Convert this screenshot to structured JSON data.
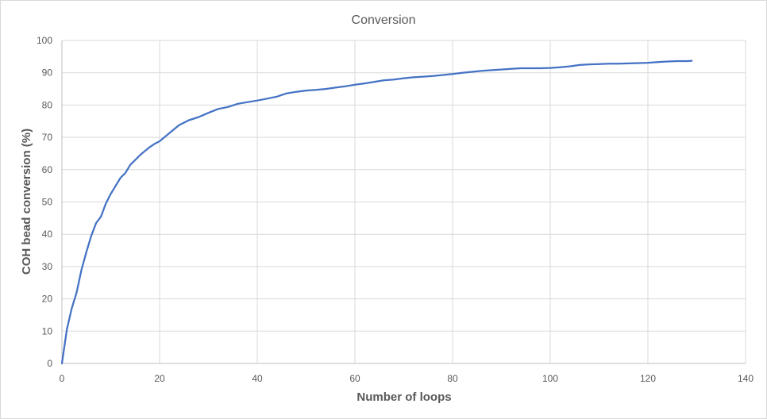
{
  "chart_data": {
    "type": "line",
    "title": "Conversion",
    "xlabel": "Number of loops",
    "ylabel": "COH bead conversion (%)",
    "xlim": [
      0,
      140
    ],
    "ylim": [
      0,
      100
    ],
    "xticks": [
      0,
      20,
      40,
      60,
      80,
      100,
      120,
      140
    ],
    "yticks": [
      0,
      10,
      20,
      30,
      40,
      50,
      60,
      70,
      80,
      90,
      100
    ],
    "grid": true,
    "legend": "none",
    "series": [
      {
        "color": "#4472c4",
        "x": [
          0,
          1,
          2,
          3,
          4,
          5,
          6,
          7,
          8,
          9,
          10,
          11,
          12,
          13,
          14,
          15,
          16,
          17,
          18,
          19,
          20,
          22,
          24,
          26,
          28,
          30,
          32,
          34,
          36,
          38,
          40,
          42,
          44,
          46,
          48,
          50,
          52,
          54,
          56,
          58,
          60,
          62,
          64,
          66,
          68,
          70,
          72,
          74,
          76,
          78,
          80,
          82,
          84,
          86,
          88,
          90,
          92,
          94,
          96,
          98,
          100,
          102,
          104,
          106,
          108,
          110,
          112,
          114,
          116,
          118,
          120,
          122,
          124,
          126,
          128,
          129
        ],
        "values": [
          0,
          10.5,
          17.0,
          22.0,
          29.0,
          34.5,
          39.5,
          43.5,
          45.5,
          49.5,
          52.5,
          55.0,
          57.5,
          59.0,
          61.5,
          63.0,
          64.5,
          65.8,
          67.0,
          68.0,
          68.8,
          71.3,
          73.8,
          75.3,
          76.3,
          77.6,
          78.8,
          79.4,
          80.4,
          80.9,
          81.4,
          82.0,
          82.6,
          83.6,
          84.1,
          84.5,
          84.7,
          85.0,
          85.4,
          85.8,
          86.3,
          86.7,
          87.2,
          87.7,
          87.9,
          88.3,
          88.6,
          88.8,
          89.0,
          89.3,
          89.6,
          90.0,
          90.3,
          90.6,
          90.8,
          91.0,
          91.2,
          91.4,
          91.4,
          91.4,
          91.5,
          91.7,
          92.0,
          92.4,
          92.6,
          92.7,
          92.8,
          92.8,
          92.9,
          93.0,
          93.1,
          93.3,
          93.5,
          93.6,
          93.6,
          93.7
        ]
      }
    ]
  }
}
